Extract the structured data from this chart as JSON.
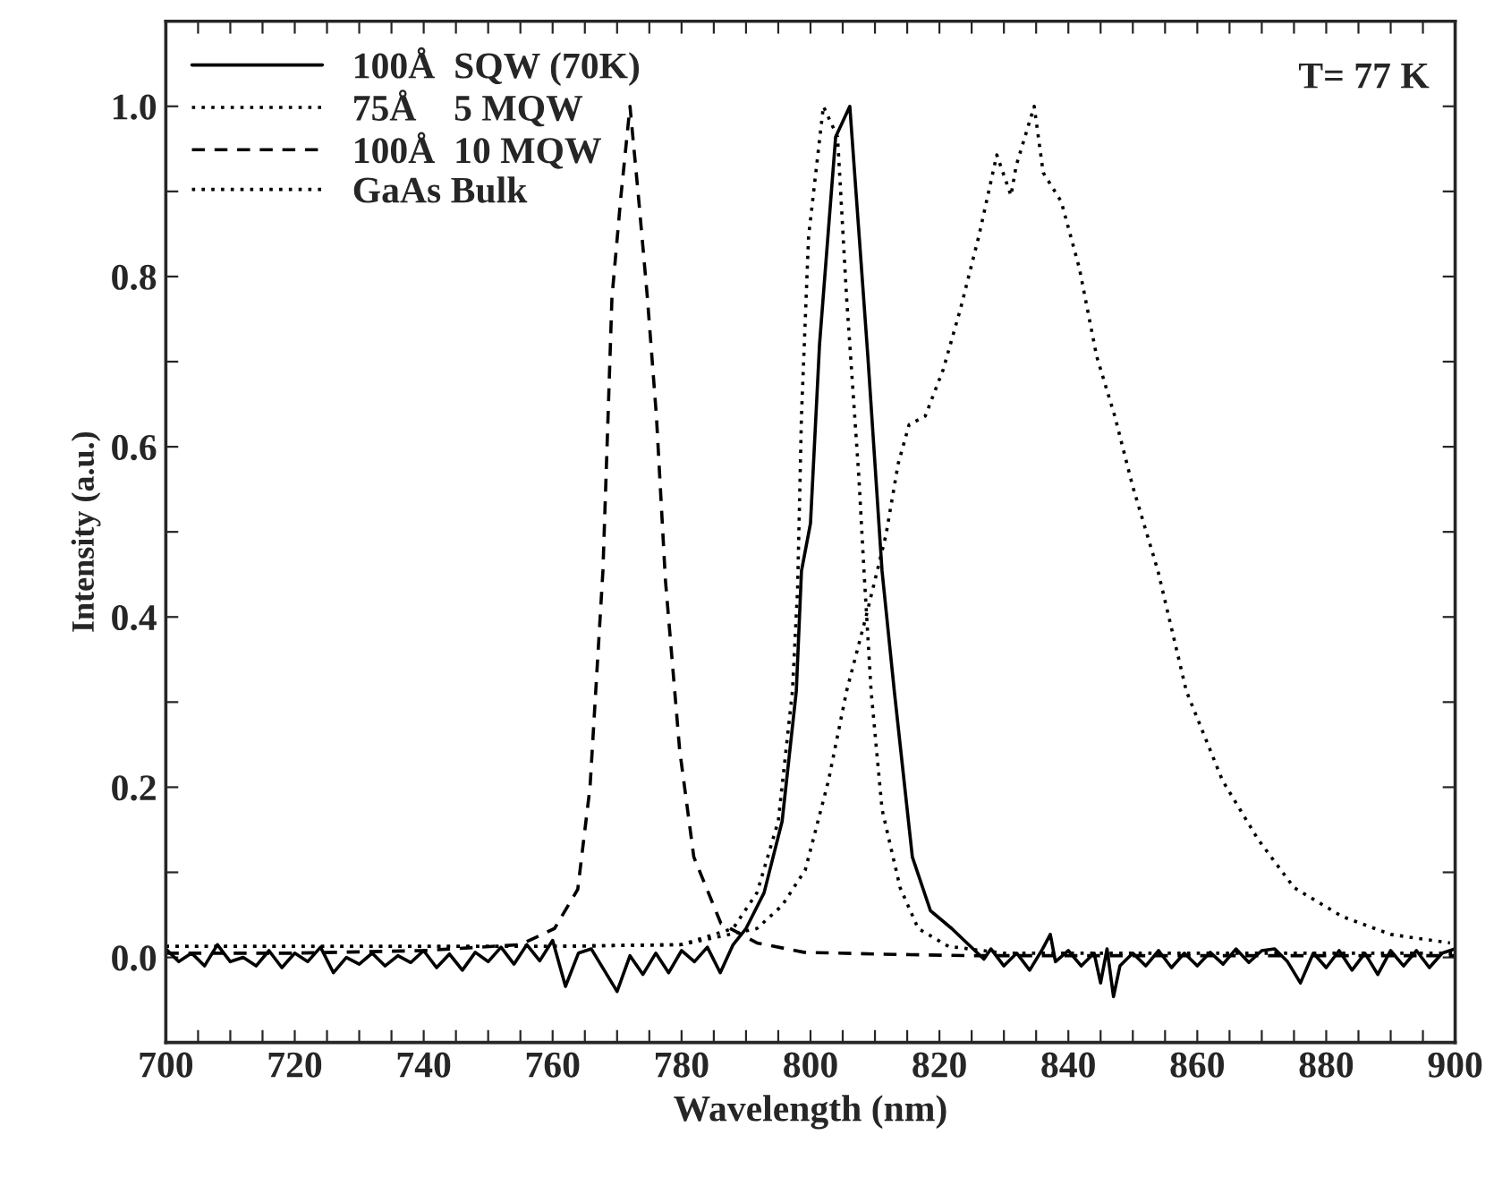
{
  "chart_data": {
    "type": "line",
    "xlabel": "Wavelength (nm)",
    "ylabel": "Intensity (a.u.)",
    "xlim": [
      700,
      900
    ],
    "ylim": [
      -0.1,
      1.1
    ],
    "xticks": [
      700,
      {
        "value": 705,
        "label": null
      },
      {
        "value": 710,
        "label": null
      },
      {
        "value": 715,
        "label": null
      },
      720,
      {
        "value": 725,
        "label": null
      },
      {
        "value": 730,
        "label": null
      },
      {
        "value": 735,
        "label": null
      },
      740,
      {
        "value": 745,
        "label": null
      },
      {
        "value": 750,
        "label": null
      },
      {
        "value": 755,
        "label": null
      },
      760,
      {
        "value": 765,
        "label": null
      },
      {
        "value": 770,
        "label": null
      },
      {
        "value": 775,
        "label": null
      },
      780,
      {
        "value": 785,
        "label": null
      },
      {
        "value": 790,
        "label": null
      },
      {
        "value": 795,
        "label": null
      },
      800,
      {
        "value": 805,
        "label": null
      },
      {
        "value": 810,
        "label": null
      },
      {
        "value": 815,
        "label": null
      },
      820,
      {
        "value": 825,
        "label": null
      },
      {
        "value": 830,
        "label": null
      },
      {
        "value": 835,
        "label": null
      },
      840,
      {
        "value": 845,
        "label": null
      },
      {
        "value": 850,
        "label": null
      },
      {
        "value": 855,
        "label": null
      },
      860,
      {
        "value": 865,
        "label": null
      },
      {
        "value": 870,
        "label": null
      },
      {
        "value": 875,
        "label": null
      },
      880,
      {
        "value": 885,
        "label": null
      },
      {
        "value": 890,
        "label": null
      },
      {
        "value": 895,
        "label": null
      },
      900
    ],
    "yticks": [
      {
        "value": 0,
        "label": "0.0"
      },
      {
        "value": 0.1,
        "label": null
      },
      0.2,
      {
        "value": 0.3,
        "label": null
      },
      0.4,
      {
        "value": 0.5,
        "label": null
      },
      0.6,
      {
        "value": 0.7,
        "label": null
      },
      0.8,
      {
        "value": 0.9,
        "label": null
      },
      {
        "value": 1.0,
        "label": "1.0"
      }
    ],
    "grid": false,
    "legend": "top left",
    "marker": "none",
    "annotations": [
      "T= 77 K"
    ],
    "series": [
      {
        "name": "100Å  SQW (70K)",
        "color": "#000000",
        "line_style": "solid",
        "x": [
          700,
          702,
          704,
          706,
          708,
          710,
          712,
          714,
          716,
          718,
          720,
          722,
          724,
          726,
          728,
          730,
          732,
          734,
          736,
          738,
          740,
          742,
          744,
          746,
          748,
          750,
          752,
          754,
          756,
          758,
          760,
          762,
          764,
          766,
          768,
          770,
          772,
          774,
          776,
          778,
          780,
          782,
          784,
          786,
          788,
          790,
          792.8,
          795.6,
          797.8,
          798.6,
          800,
          801.4,
          803.9,
          806.1,
          808.9,
          811.1,
          813,
          815.8,
          818.6,
          821.9,
          826.9,
          828,
          830,
          832,
          834,
          836,
          837.2,
          838,
          840,
          842,
          844,
          845,
          846,
          847,
          848,
          850,
          852,
          854,
          856,
          858,
          860,
          862,
          864,
          866,
          868,
          870,
          872,
          874,
          876,
          878,
          880,
          882,
          884,
          886,
          888,
          890,
          892,
          894,
          896,
          898,
          900
        ],
        "values": [
          0.01,
          -0.005,
          0.005,
          -0.01,
          0.015,
          -0.005,
          0,
          -0.01,
          0.008,
          -0.012,
          0.005,
          -0.005,
          0.012,
          -0.018,
          0,
          -0.008,
          0.005,
          -0.01,
          0.002,
          -0.006,
          0.008,
          -0.012,
          0.004,
          -0.015,
          0.006,
          -0.005,
          0.012,
          -0.008,
          0.015,
          -0.004,
          0.02,
          -0.034,
          0.005,
          0.01,
          -0.015,
          -0.04,
          0.002,
          -0.02,
          0.005,
          -0.018,
          0.008,
          -0.005,
          0.012,
          -0.018,
          0.015,
          0.034,
          0.076,
          0.16,
          0.313,
          0.454,
          0.51,
          0.72,
          0.964,
          1.0,
          0.706,
          0.454,
          0.313,
          0.118,
          0.055,
          0.034,
          -0.002,
          0.01,
          -0.01,
          0.005,
          -0.015,
          0.01,
          0.027,
          -0.005,
          0.008,
          -0.01,
          0.005,
          -0.03,
          0.01,
          -0.046,
          -0.01,
          0.005,
          -0.01,
          0.008,
          -0.012,
          0.005,
          -0.01,
          0.006,
          -0.008,
          0.01,
          -0.006,
          0.008,
          0.01,
          -0.005,
          -0.03,
          0.005,
          -0.012,
          0.008,
          -0.015,
          0.005,
          -0.02,
          0.008,
          -0.01,
          0.008,
          -0.012,
          0.005,
          0.01
        ]
      },
      {
        "name": "75Å    5 MQW",
        "color": "#000000",
        "line_style": "dotted",
        "x": [
          700,
          720,
          740,
          760,
          780,
          788,
          791.7,
          795,
          797.2,
          798,
          798.6,
          799.7,
          802,
          804.2,
          805.6,
          807.5,
          808.3,
          809.4,
          811.1,
          813.9,
          816.7,
          821.4,
          830,
          850,
          870,
          900
        ],
        "values": [
          0.013,
          0.013,
          0.013,
          0.013,
          0.015,
          0.034,
          0.076,
          0.16,
          0.313,
          0.433,
          0.636,
          0.847,
          1.0,
          0.964,
          0.775,
          0.565,
          0.454,
          0.313,
          0.174,
          0.082,
          0.034,
          0.013,
          0.005,
          0.005,
          0.005,
          0.005
        ]
      },
      {
        "name": "100Å  10 MQW",
        "color": "#000000",
        "line_style": "dashed",
        "x": [
          700,
          720,
          740,
          755,
          760.3,
          763.9,
          765.8,
          767.8,
          768.6,
          769.2,
          770.6,
          772,
          773.3,
          774.7,
          776.1,
          777.5,
          779.7,
          781.9,
          786.1,
          791.7,
          799,
          810,
          825,
          850,
          875,
          900
        ],
        "values": [
          0.005,
          0.005,
          0.008,
          0.015,
          0.034,
          0.08,
          0.2,
          0.454,
          0.636,
          0.775,
          0.895,
          1.0,
          0.895,
          0.775,
          0.636,
          0.443,
          0.244,
          0.118,
          0.04,
          0.017,
          0.006,
          0.004,
          0.002,
          0.002,
          0.002,
          0.002
        ]
      },
      {
        "name": "GaAs Bulk",
        "color": "#000000",
        "line_style": "dotted",
        "x": [
          700,
          720,
          740,
          760,
          780,
          791.7,
          795.6,
          799.2,
          802.8,
          805.6,
          808.6,
          811.7,
          813.6,
          815.3,
          817.8,
          820.6,
          823.3,
          826.1,
          828.9,
          831.1,
          831.9,
          834.7,
          836.1,
          838.9,
          841.7,
          844.4,
          847.2,
          850,
          853.9,
          858.3,
          863.9,
          869.4,
          875,
          882.5,
          890,
          899.2
        ],
        "values": [
          0.013,
          0.013,
          0.013,
          0.013,
          0.015,
          0.034,
          0.061,
          0.103,
          0.208,
          0.313,
          0.4,
          0.496,
          0.58,
          0.626,
          0.636,
          0.691,
          0.763,
          0.847,
          0.943,
          0.895,
          0.93,
          1.0,
          0.922,
          0.888,
          0.81,
          0.706,
          0.636,
          0.553,
          0.454,
          0.313,
          0.208,
          0.139,
          0.082,
          0.048,
          0.027,
          0.017
        ]
      }
    ]
  }
}
